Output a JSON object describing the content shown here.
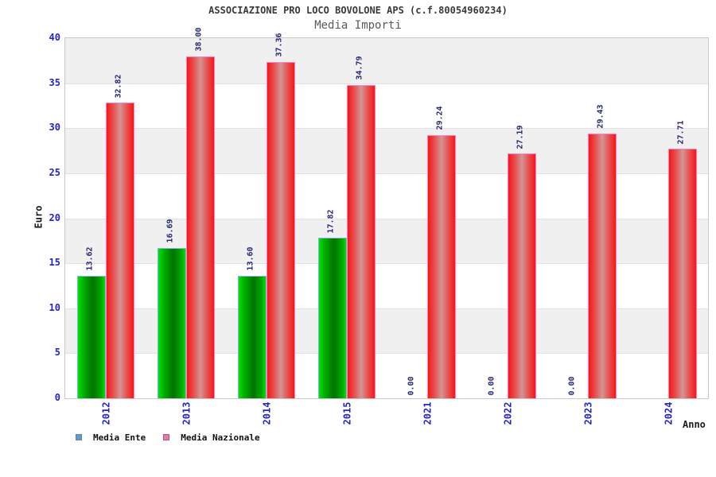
{
  "chart_data": {
    "type": "bar",
    "title": "ASSOCIAZIONE PRO LOCO BOVOLONE APS (c.f.80054960234)",
    "subtitle": "Media Importi",
    "xlabel": "Anno",
    "ylabel": "Euro",
    "ylim": [
      0,
      40
    ],
    "ytick_step": 5,
    "grid": "alternating horizontal bands, light gray / white, every 5 units",
    "legend_position": "bottom-left",
    "categories": [
      "2012",
      "2013",
      "2014",
      "2015",
      "2021",
      "2022",
      "2023",
      "2024"
    ],
    "series": [
      {
        "name": "Media Ente",
        "values": [
          13.62,
          16.69,
          13.6,
          17.82,
          0,
          0,
          0,
          null
        ],
        "labels": [
          "13.62",
          "16.69",
          "13.60",
          "17.82",
          "0.00",
          "0.00",
          "0.00",
          null
        ]
      },
      {
        "name": "Media Nazionale",
        "values": [
          32.82,
          38.0,
          37.36,
          34.79,
          29.24,
          27.19,
          29.43,
          27.71
        ],
        "labels": [
          "32.82",
          "38.00",
          "37.36",
          "34.79",
          "29.24",
          "27.19",
          "29.43",
          "27.71"
        ]
      }
    ],
    "colors": {
      "title_text": "#3a3a3a",
      "subtitle_text": "#5a5a5a",
      "axis_tick_text": "#2323cb",
      "value_label_text": "#252578",
      "band_gray": "#f0f0f0",
      "plot_border": "#c8c8c8",
      "ente_bar_edge": "#00e400",
      "ente_bar_center": "#007400",
      "ente_bar_border": "#7fb2e6",
      "naz_bar_edge": "#fa1414",
      "naz_bar_center": "#d49494",
      "naz_bar_border": "#fa82c8",
      "legend_ente_swatch": "#5b9ad2",
      "legend_naz_swatch": "#f075ad"
    }
  }
}
